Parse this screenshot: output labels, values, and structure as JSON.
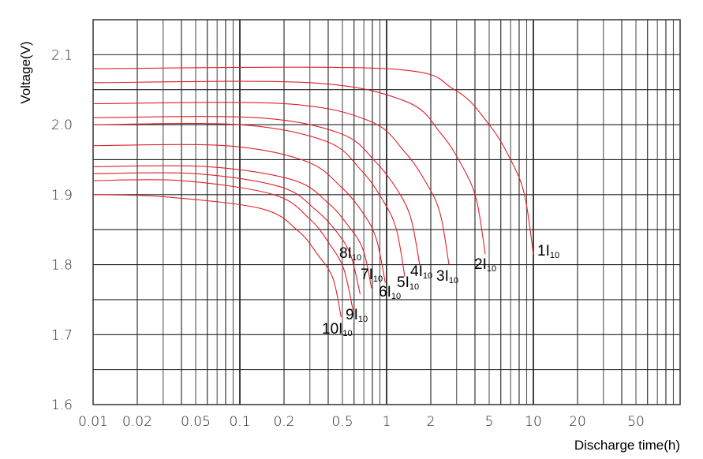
{
  "chart_data": {
    "type": "line",
    "xlabel": "Discharge time(h)",
    "ylabel": "Voltage(V)",
    "xscale": "log",
    "xlim": [
      0.01,
      100
    ],
    "ylim": [
      1.6,
      2.15
    ],
    "grid": true,
    "line_color": "#e0202a",
    "x_ticks": [
      0.01,
      0.02,
      0.05,
      0.1,
      0.2,
      0.5,
      1,
      2,
      5,
      10,
      20,
      50
    ],
    "x_tick_labels": [
      "0.01",
      "0.02",
      "0.05",
      "0.1",
      "0.2",
      "0.5",
      "1",
      "2",
      "5",
      "10",
      "20",
      "50"
    ],
    "y_ticks": [
      1.6,
      1.7,
      1.8,
      1.9,
      2.0,
      2.1
    ],
    "y_tick_labels": [
      "1.6",
      "1.7",
      "1.8",
      "1.9",
      "2.0",
      "2.1"
    ],
    "series": [
      {
        "name": "1I",
        "sub": "10",
        "points": [
          [
            0.01,
            2.08
          ],
          [
            1,
            2.08
          ],
          [
            2.9,
            2.05
          ],
          [
            5,
            2.0
          ],
          [
            7,
            1.95
          ],
          [
            8.7,
            1.9
          ],
          [
            10,
            1.815
          ]
        ]
      },
      {
        "name": "2I",
        "sub": "10",
        "points": [
          [
            0.01,
            2.06
          ],
          [
            0.3,
            2.06
          ],
          [
            1.36,
            2.033
          ],
          [
            2.35,
            1.987
          ],
          [
            3.29,
            1.94
          ],
          [
            4.09,
            1.893
          ],
          [
            4.7,
            1.815
          ]
        ]
      },
      {
        "name": "3I",
        "sub": "10",
        "points": [
          [
            0.01,
            2.03
          ],
          [
            0.2,
            2.03
          ],
          [
            0.77,
            2.005
          ],
          [
            1.33,
            1.961
          ],
          [
            1.86,
            1.917
          ],
          [
            2.31,
            1.874
          ],
          [
            2.66,
            1.8
          ]
        ]
      },
      {
        "name": "4I",
        "sub": "10",
        "points": [
          [
            0.01,
            2.01
          ],
          [
            0.13,
            2.01
          ],
          [
            0.49,
            1.987
          ],
          [
            0.84,
            1.947
          ],
          [
            1.18,
            1.907
          ],
          [
            1.46,
            1.867
          ],
          [
            1.68,
            1.8
          ]
        ]
      },
      {
        "name": "5I",
        "sub": "10",
        "points": [
          [
            0.01,
            2.0
          ],
          [
            0.1,
            2.0
          ],
          [
            0.39,
            1.976
          ],
          [
            0.67,
            1.935
          ],
          [
            0.93,
            1.894
          ],
          [
            1.16,
            1.852
          ],
          [
            1.33,
            1.783
          ]
        ]
      },
      {
        "name": "6I",
        "sub": "10",
        "points": [
          [
            0.01,
            1.97
          ],
          [
            0.08,
            1.97
          ],
          [
            0.28,
            1.948
          ],
          [
            0.49,
            1.911
          ],
          [
            0.69,
            1.874
          ],
          [
            0.85,
            1.837
          ],
          [
            0.98,
            1.774
          ]
        ]
      },
      {
        "name": "7I",
        "sub": "10",
        "points": [
          [
            0.01,
            1.94
          ],
          [
            0.06,
            1.94
          ],
          [
            0.23,
            1.921
          ],
          [
            0.4,
            1.888
          ],
          [
            0.55,
            1.855
          ],
          [
            0.69,
            1.822
          ],
          [
            0.79,
            1.766
          ]
        ]
      },
      {
        "name": "8I",
        "sub": "10",
        "points": [
          [
            0.01,
            1.93
          ],
          [
            0.05,
            1.93
          ],
          [
            0.19,
            1.911
          ],
          [
            0.33,
            1.878
          ],
          [
            0.46,
            1.846
          ],
          [
            0.57,
            1.813
          ],
          [
            0.66,
            1.758
          ]
        ]
      },
      {
        "name": "9I",
        "sub": "10",
        "points": [
          [
            0.01,
            1.92
          ],
          [
            0.04,
            1.92
          ],
          [
            0.17,
            1.9
          ],
          [
            0.3,
            1.865
          ],
          [
            0.41,
            1.829
          ],
          [
            0.51,
            1.794
          ],
          [
            0.59,
            1.735
          ]
        ]
      },
      {
        "name": "10I",
        "sub": "10",
        "points": [
          [
            0.01,
            1.9
          ],
          [
            0.03,
            1.897
          ],
          [
            0.14,
            1.88
          ],
          [
            0.25,
            1.848
          ],
          [
            0.34,
            1.814
          ],
          [
            0.43,
            1.781
          ],
          [
            0.49,
            1.725
          ]
        ]
      }
    ]
  }
}
